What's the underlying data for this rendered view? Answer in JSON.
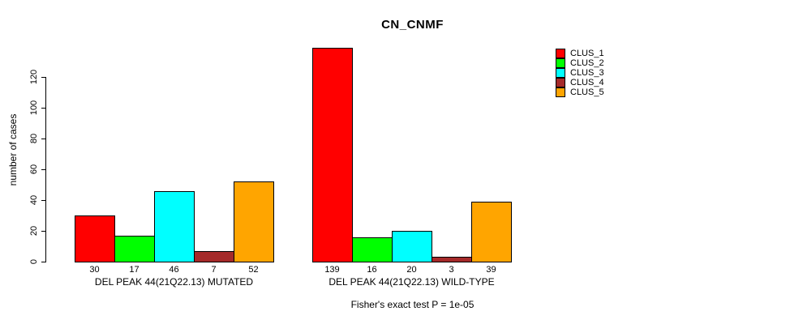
{
  "title": "CN_CNMF",
  "ylabel": "number of cases",
  "footer": "Fisher's exact test P = 1e-05",
  "legend": {
    "entries": [
      {
        "label": "CLUS_1",
        "color": "#FF0000"
      },
      {
        "label": "CLUS_2",
        "color": "#00FF00"
      },
      {
        "label": "CLUS_3",
        "color": "#00FFFF"
      },
      {
        "label": "CLUS_4",
        "color": "#A52A2A"
      },
      {
        "label": "CLUS_5",
        "color": "#FFA500"
      }
    ]
  },
  "chart_data": {
    "type": "bar",
    "title": "CN_CNMF",
    "ylabel": "number of cases",
    "xlabel": "",
    "series_names": [
      "CLUS_1",
      "CLUS_2",
      "CLUS_3",
      "CLUS_4",
      "CLUS_5"
    ],
    "series_colors": [
      "#FF0000",
      "#00FF00",
      "#00FFFF",
      "#A52A2A",
      "#FFA500"
    ],
    "groups": [
      {
        "label": "DEL PEAK 44(21Q22.13) MUTATED",
        "values": [
          30,
          17,
          46,
          7,
          52
        ]
      },
      {
        "label": "DEL PEAK 44(21Q22.13) WILD-TYPE",
        "values": [
          139,
          16,
          20,
          3,
          39
        ]
      }
    ],
    "yticks": [
      0,
      20,
      40,
      60,
      80,
      100,
      120
    ],
    "ylim": [
      0,
      145
    ],
    "grid": false,
    "legend_position": "top-right",
    "annotation": "Fisher's exact test P = 1e-05"
  }
}
